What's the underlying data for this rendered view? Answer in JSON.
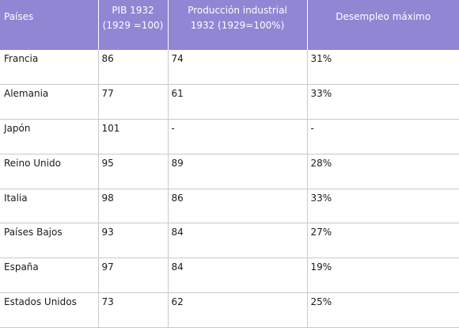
{
  "table": {
    "headers": [
      "Países",
      "PIB 1932\n(1929 =100)",
      "Producción industrial\n1932 (1929=100%)",
      "Desempleo máximo"
    ],
    "rows": [
      [
        "Francia",
        "86",
        "74",
        "31%"
      ],
      [
        "Alemania",
        "77",
        "61",
        "33%"
      ],
      [
        "Japón",
        "101",
        "-",
        "-"
      ],
      [
        "Reino Unido",
        "95",
        "89",
        "28%"
      ],
      [
        "Italia",
        "98",
        "86",
        "33%"
      ],
      [
        "Países Bajos",
        "93",
        "84",
        "27%"
      ],
      [
        "España",
        "97",
        "84",
        "19%"
      ],
      [
        "Estados Unidos",
        "73",
        "62",
        "25%"
      ]
    ]
  },
  "colors": {
    "header_background": "#8f86d4",
    "header_text": "#ffffff",
    "grid_line": "#c9c9c9"
  }
}
